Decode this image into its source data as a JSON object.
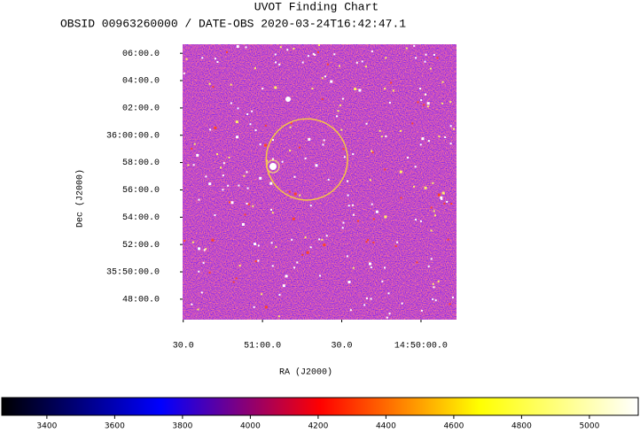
{
  "chart_data": {
    "type": "image",
    "title": "UVOT Finding Chart",
    "subtitle": "OBSID 00963260000 / DATE-OBS 2020-03-24T16:42:47.1",
    "x_label": "RA (J2000)",
    "y_label": "Dec (J2000)",
    "xlim": [
      222.876,
      222.444
    ],
    "ylim": [
      35.775,
      36.111
    ],
    "xticks": [
      {
        "value": 222.875,
        "label": "30.0"
      },
      {
        "value": 222.75,
        "label": "51:00.0"
      },
      {
        "value": 222.625,
        "label": "30.0"
      },
      {
        "value": 222.5,
        "label": "14:50:00.0"
      }
    ],
    "yticks": [
      {
        "value": 36.1,
        "label": "06:00.0"
      },
      {
        "value": 36.0667,
        "label": "04:00.0"
      },
      {
        "value": 36.0333,
        "label": "02:00.0"
      },
      {
        "value": 36.0,
        "label": "36:00:00.0"
      },
      {
        "value": 35.9667,
        "label": "58:00.0"
      },
      {
        "value": 35.9333,
        "label": "56:00.0"
      },
      {
        "value": 35.9,
        "label": "54:00.0"
      },
      {
        "value": 35.8667,
        "label": "52:00.0"
      },
      {
        "value": 35.8333,
        "label": "35:50:00.0"
      },
      {
        "value": 35.8,
        "label": "48:00.0"
      }
    ],
    "circle": {
      "ra": 222.68,
      "dec": 35.9705,
      "radius": 0.0496,
      "color": "#f5c542"
    },
    "colorbar": {
      "clim": [
        3267,
        5144
      ],
      "ticks": [
        3400,
        3600,
        3800,
        4000,
        4200,
        4400,
        4600,
        4800,
        5000
      ],
      "colormap": [
        "#000000",
        "#0000ff",
        "#ff0000",
        "#ffff00",
        "#ffffff"
      ]
    }
  }
}
